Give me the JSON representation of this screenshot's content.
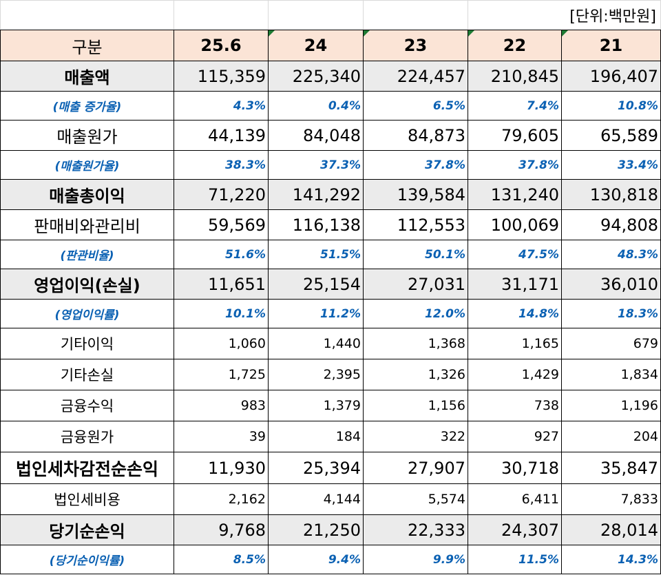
{
  "unit": "[단위:백만원]",
  "header": {
    "label": "구분",
    "periods": [
      "25.6",
      "24",
      "23",
      "22",
      "21"
    ]
  },
  "rows": [
    {
      "label": "매출액",
      "style": "bold-grey",
      "values": [
        "115,359",
        "225,340",
        "224,457",
        "210,845",
        "196,407"
      ]
    },
    {
      "label": "(매출 증가율)",
      "style": "ratio",
      "values": [
        "4.3%",
        "0.4%",
        "6.5%",
        "7.4%",
        "10.8%"
      ]
    },
    {
      "label": "매출원가",
      "style": "plain",
      "values": [
        "44,139",
        "84,048",
        "84,873",
        "79,605",
        "65,589"
      ]
    },
    {
      "label": "(매출원가율)",
      "style": "ratio",
      "values": [
        "38.3%",
        "37.3%",
        "37.8%",
        "37.8%",
        "33.4%"
      ]
    },
    {
      "label": "매출총이익",
      "style": "bold-grey",
      "values": [
        "71,220",
        "141,292",
        "139,584",
        "131,240",
        "130,818"
      ]
    },
    {
      "label": "판매비와관리비",
      "style": "plain",
      "values": [
        "59,569",
        "116,138",
        "112,553",
        "100,069",
        "94,808"
      ]
    },
    {
      "label": "(판관비율)",
      "style": "ratio",
      "values": [
        "51.6%",
        "51.5%",
        "50.1%",
        "47.5%",
        "48.3%"
      ]
    },
    {
      "label": "영업이익(손실)",
      "style": "bold-grey",
      "values": [
        "11,651",
        "25,154",
        "27,031",
        "31,171",
        "36,010"
      ]
    },
    {
      "label": "(영업이익률)",
      "style": "ratio",
      "values": [
        "10.1%",
        "11.2%",
        "12.0%",
        "14.8%",
        "18.3%"
      ]
    },
    {
      "label": "기타이익",
      "style": "small",
      "values": [
        "1,060",
        "1,440",
        "1,368",
        "1,165",
        "679"
      ]
    },
    {
      "label": "기타손실",
      "style": "small",
      "values": [
        "1,725",
        "2,395",
        "1,326",
        "1,429",
        "1,834"
      ]
    },
    {
      "label": "금융수익",
      "style": "small",
      "values": [
        "983",
        "1,379",
        "1,156",
        "738",
        "1,196"
      ]
    },
    {
      "label": "금융원가",
      "style": "small",
      "values": [
        "39",
        "184",
        "322",
        "927",
        "204"
      ]
    },
    {
      "label": "법인세차감전순손익",
      "style": "big-bold",
      "values": [
        "11,930",
        "25,394",
        "27,907",
        "30,718",
        "35,847"
      ]
    },
    {
      "label": "법인세비용",
      "style": "small",
      "values": [
        "2,162",
        "4,144",
        "5,574",
        "6,411",
        "7,833"
      ]
    },
    {
      "label": "당기순손익",
      "style": "bold-grey",
      "values": [
        "9,768",
        "21,250",
        "22,333",
        "24,307",
        "28,014"
      ]
    },
    {
      "label": "(당기순이익률)",
      "style": "ratio",
      "values": [
        "8.5%",
        "9.4%",
        "9.9%",
        "11.5%",
        "14.3%"
      ]
    }
  ]
}
